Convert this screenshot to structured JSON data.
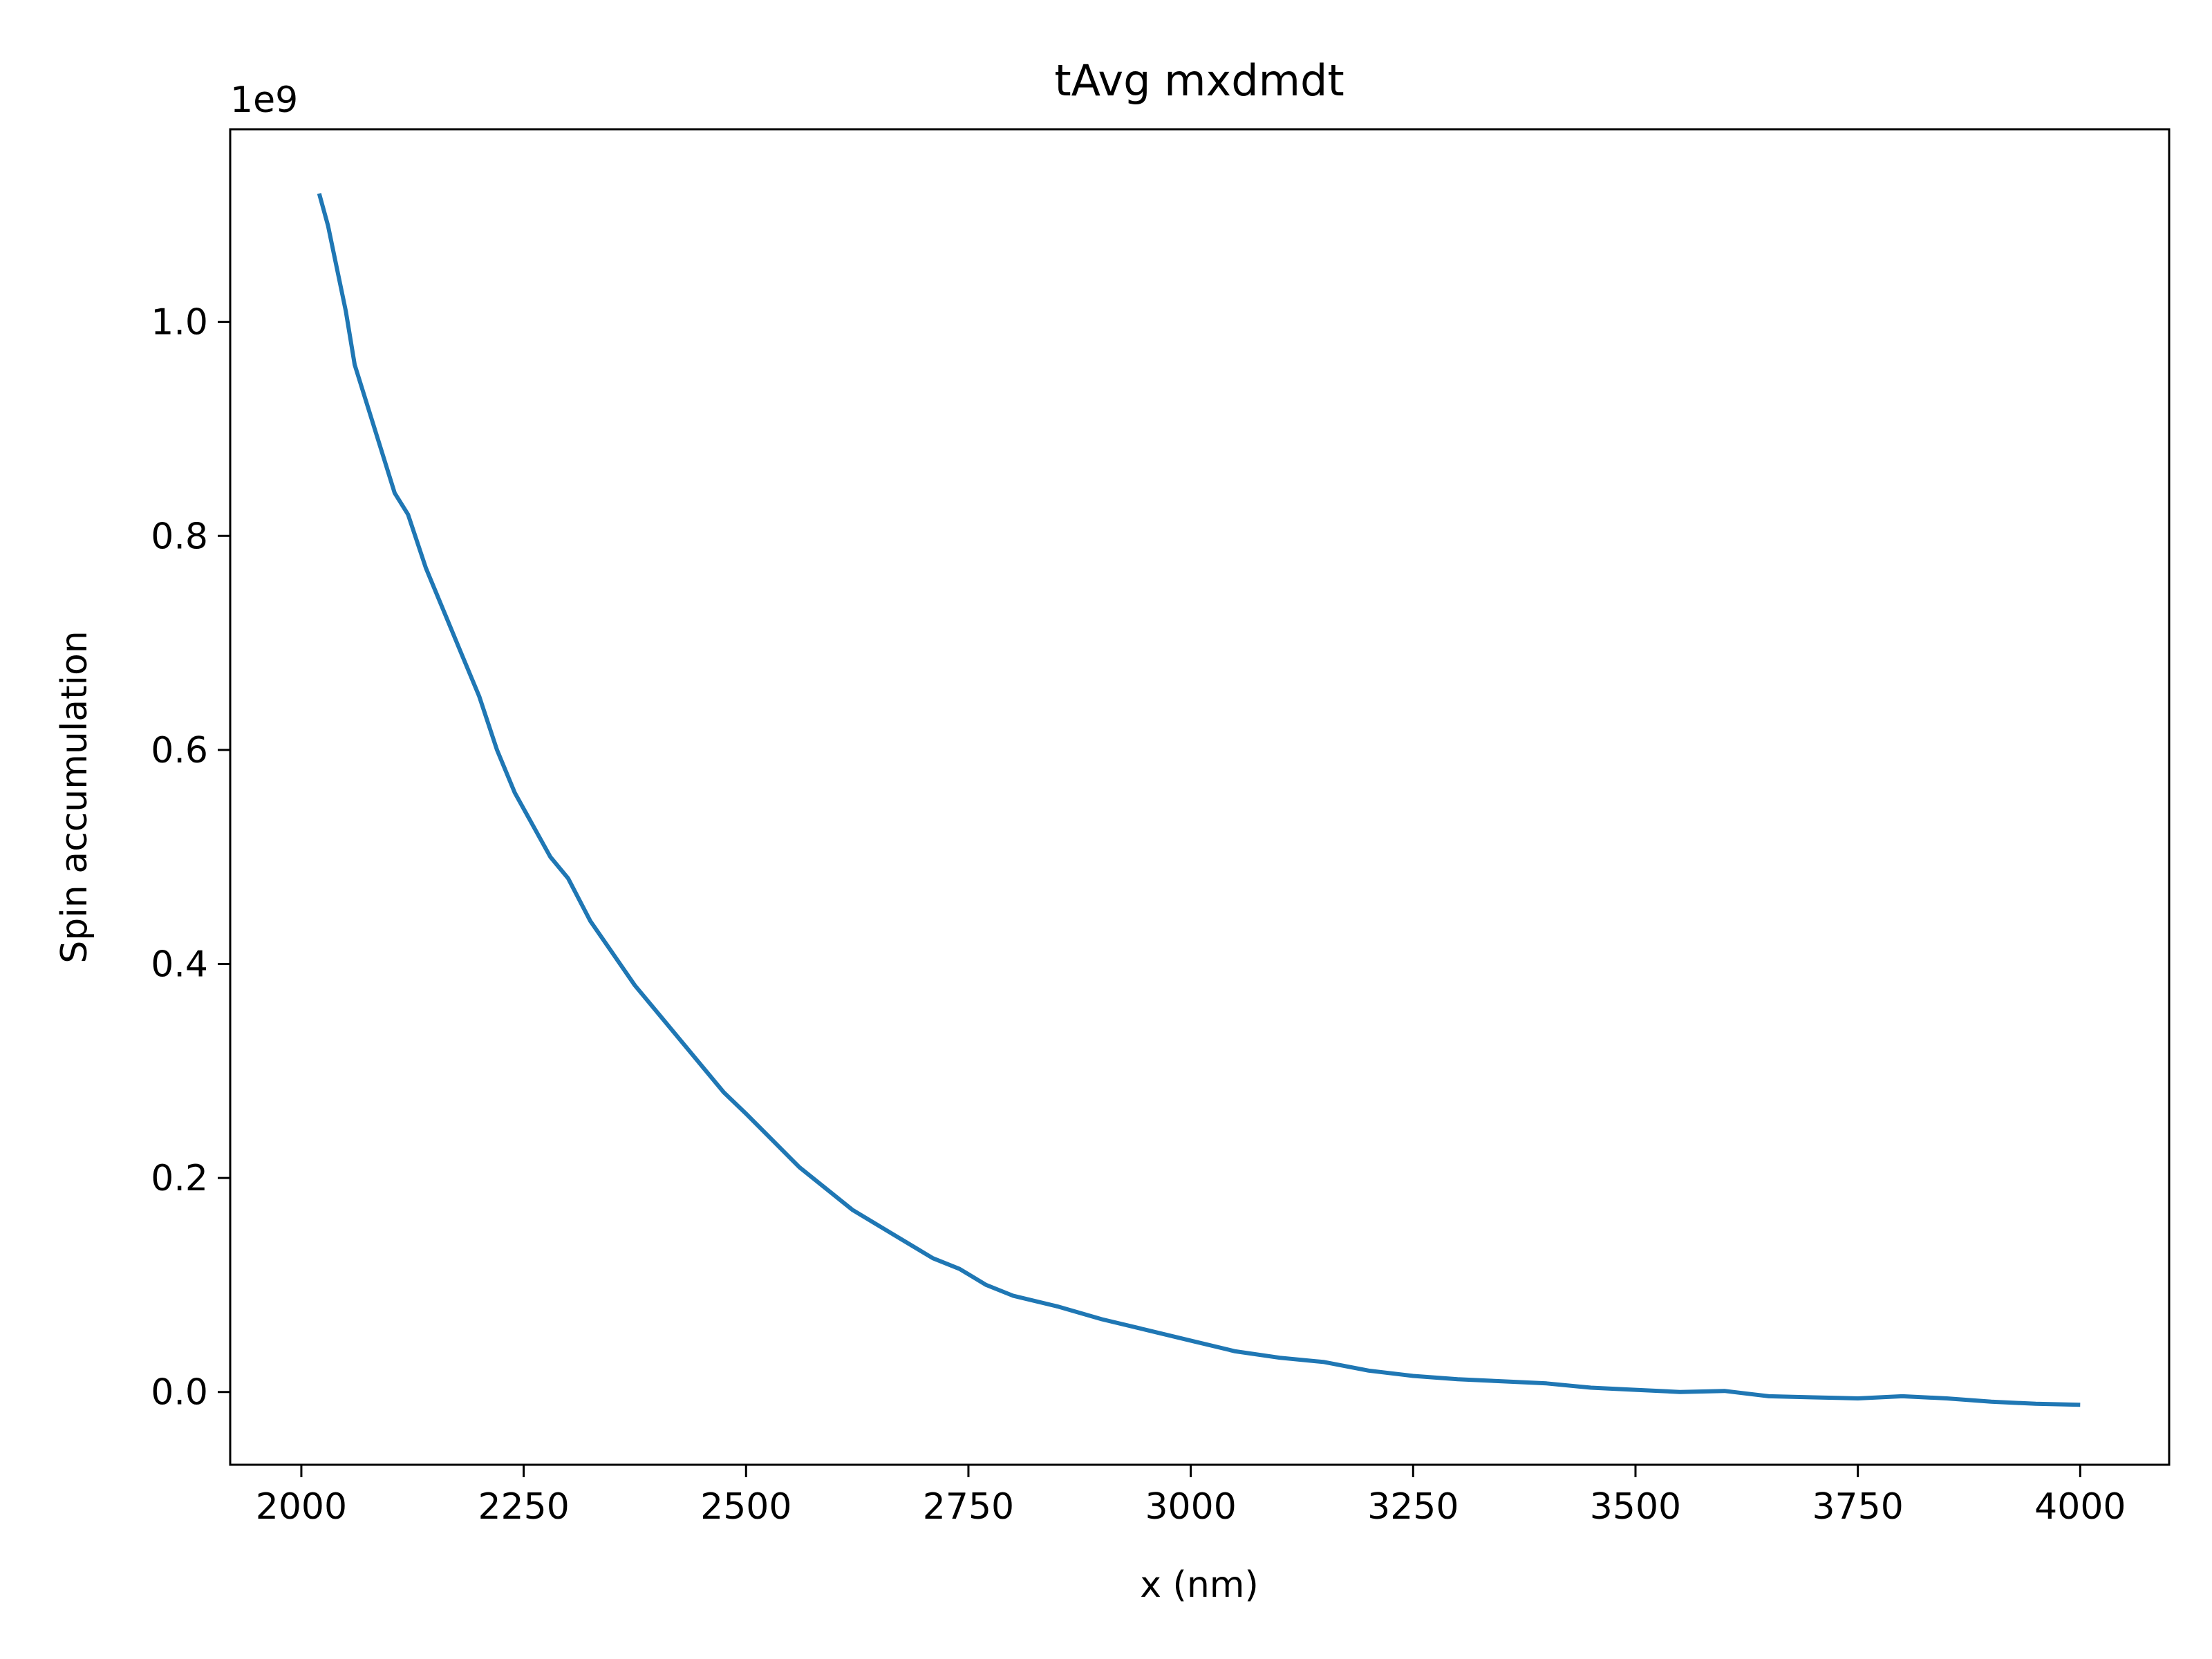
{
  "chart_data": {
    "type": "line",
    "title": "tAvg mxdmdt",
    "xlabel": "x (nm)",
    "ylabel": "Spin accumulation",
    "y_offset_text": "1e9",
    "y_scale_factor": 1000000000,
    "xlim": [
      1920,
      4100
    ],
    "ylim": [
      -0.068,
      1.18
    ],
    "x_ticks": [
      2000,
      2250,
      2500,
      2750,
      3000,
      3250,
      3500,
      3750,
      4000
    ],
    "y_ticks": [
      0.0,
      0.2,
      0.4,
      0.6,
      0.8,
      1.0
    ],
    "y_tick_labels": [
      "0.0",
      "0.2",
      "0.4",
      "0.6",
      "0.8",
      "1.0"
    ],
    "grid": false,
    "line_color": "#1f77b4",
    "series": [
      {
        "x": [
          2020,
          2030,
          2040,
          2050,
          2060,
          2075,
          2090,
          2105,
          2120,
          2140,
          2160,
          2180,
          2200,
          2220,
          2240,
          2260,
          2280,
          2300,
          2325,
          2350,
          2375,
          2400,
          2425,
          2450,
          2475,
          2500,
          2530,
          2560,
          2590,
          2620,
          2650,
          2680,
          2710,
          2740,
          2770,
          2800,
          2850,
          2900,
          2950,
          3000,
          3050,
          3100,
          3150,
          3200,
          3250,
          3300,
          3350,
          3400,
          3450,
          3500,
          3550,
          3600,
          3650,
          3700,
          3750,
          3800,
          3850,
          3900,
          3950,
          4000
        ],
        "y": [
          1.12,
          1.09,
          1.05,
          1.01,
          0.96,
          0.92,
          0.88,
          0.84,
          0.82,
          0.77,
          0.73,
          0.69,
          0.65,
          0.6,
          0.56,
          0.53,
          0.5,
          0.48,
          0.44,
          0.41,
          0.38,
          0.355,
          0.33,
          0.305,
          0.28,
          0.26,
          0.235,
          0.21,
          0.19,
          0.17,
          0.155,
          0.14,
          0.125,
          0.115,
          0.1,
          0.09,
          0.08,
          0.068,
          0.058,
          0.048,
          0.038,
          0.032,
          0.028,
          0.02,
          0.015,
          0.012,
          0.01,
          0.008,
          0.004,
          0.002,
          0.0,
          0.001,
          -0.004,
          -0.005,
          -0.006,
          -0.004,
          -0.006,
          -0.009,
          -0.011,
          -0.012
        ]
      }
    ]
  }
}
